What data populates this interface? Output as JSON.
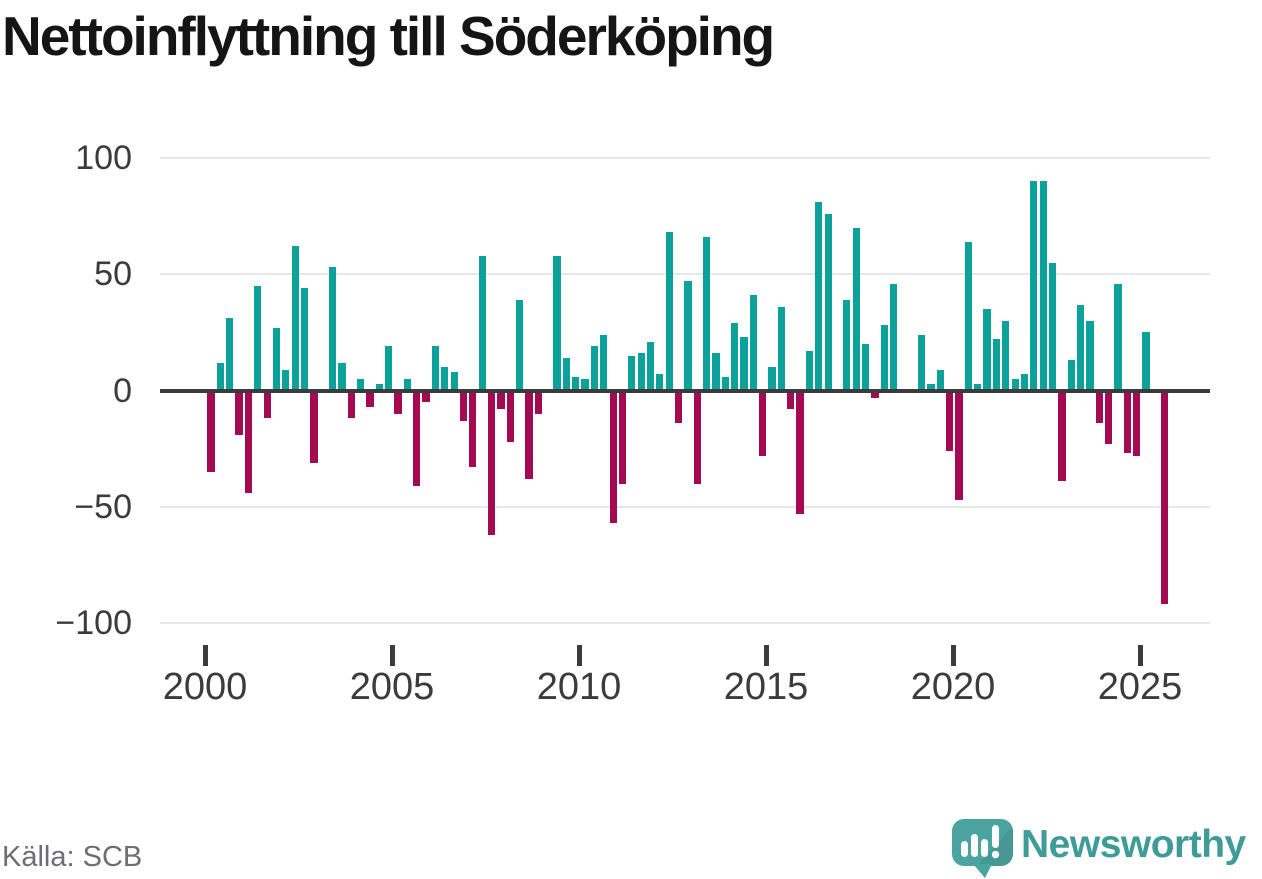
{
  "title": "Nettoinflyttning till Söderköping",
  "source": "Källa: SCB",
  "logo": {
    "text": "Newsworthy",
    "icon": "newsworthy-speech-bubble-chart-icon"
  },
  "colors": {
    "positive_bar": "#0ca19b",
    "negative_bar": "#a40a52",
    "zero_line": "#3b3b3b",
    "gridline": "#e7e7e7",
    "axis_text": "#3b3b3b",
    "title_text": "#151515",
    "source_text": "#6d6d76",
    "logo_teal": "#3f9b97",
    "logo_icon_teal": "#4ba4a0"
  },
  "chart_data": {
    "type": "bar",
    "title": "Nettoinflyttning till Söderköping",
    "frequency": "quarterly",
    "start_period": "2000-Q1",
    "end_period": "2025-Q3",
    "ylim": [
      -100,
      100
    ],
    "y_ticks": [
      100,
      50,
      0,
      -50,
      -100
    ],
    "x_tick_labels": [
      "2000",
      "2005",
      "2010",
      "2015",
      "2020",
      "2025"
    ],
    "grid": "horizontal",
    "legend": "none",
    "values_by_year": {
      "2000": [
        -35,
        12,
        31,
        -19
      ],
      "2001": [
        -44,
        45,
        -12,
        27
      ],
      "2002": [
        9,
        62,
        44,
        -31
      ],
      "2003": [
        0,
        53,
        12,
        -12
      ],
      "2004": [
        5,
        -7,
        3,
        19
      ],
      "2005": [
        -10,
        5,
        -41,
        -5
      ],
      "2006": [
        19,
        10,
        8,
        -13
      ],
      "2007": [
        -33,
        58,
        -62,
        -8
      ],
      "2008": [
        -22,
        39,
        -38,
        -10
      ],
      "2009": [
        0,
        58,
        14,
        6
      ],
      "2010": [
        5,
        19,
        24,
        -57
      ],
      "2011": [
        -40,
        15,
        16,
        21
      ],
      "2012": [
        7,
        68,
        -14,
        47
      ],
      "2013": [
        -40,
        66,
        16,
        6
      ],
      "2014": [
        29,
        23,
        41,
        -28
      ],
      "2015": [
        10,
        36,
        -8,
        -53
      ],
      "2016": [
        17,
        81,
        76,
        0
      ],
      "2017": [
        39,
        70,
        20,
        -3
      ],
      "2018": [
        28,
        46,
        0,
        0
      ],
      "2019": [
        24,
        3,
        9,
        -26
      ],
      "2020": [
        -47,
        64,
        3,
        35
      ],
      "2021": [
        22,
        30,
        5,
        7
      ],
      "2022": [
        90,
        90,
        55,
        -39
      ],
      "2023": [
        13,
        37,
        30,
        -14
      ],
      "2024": [
        -23,
        46,
        -27,
        -28
      ],
      "2025": [
        25,
        0,
        -92
      ]
    }
  }
}
